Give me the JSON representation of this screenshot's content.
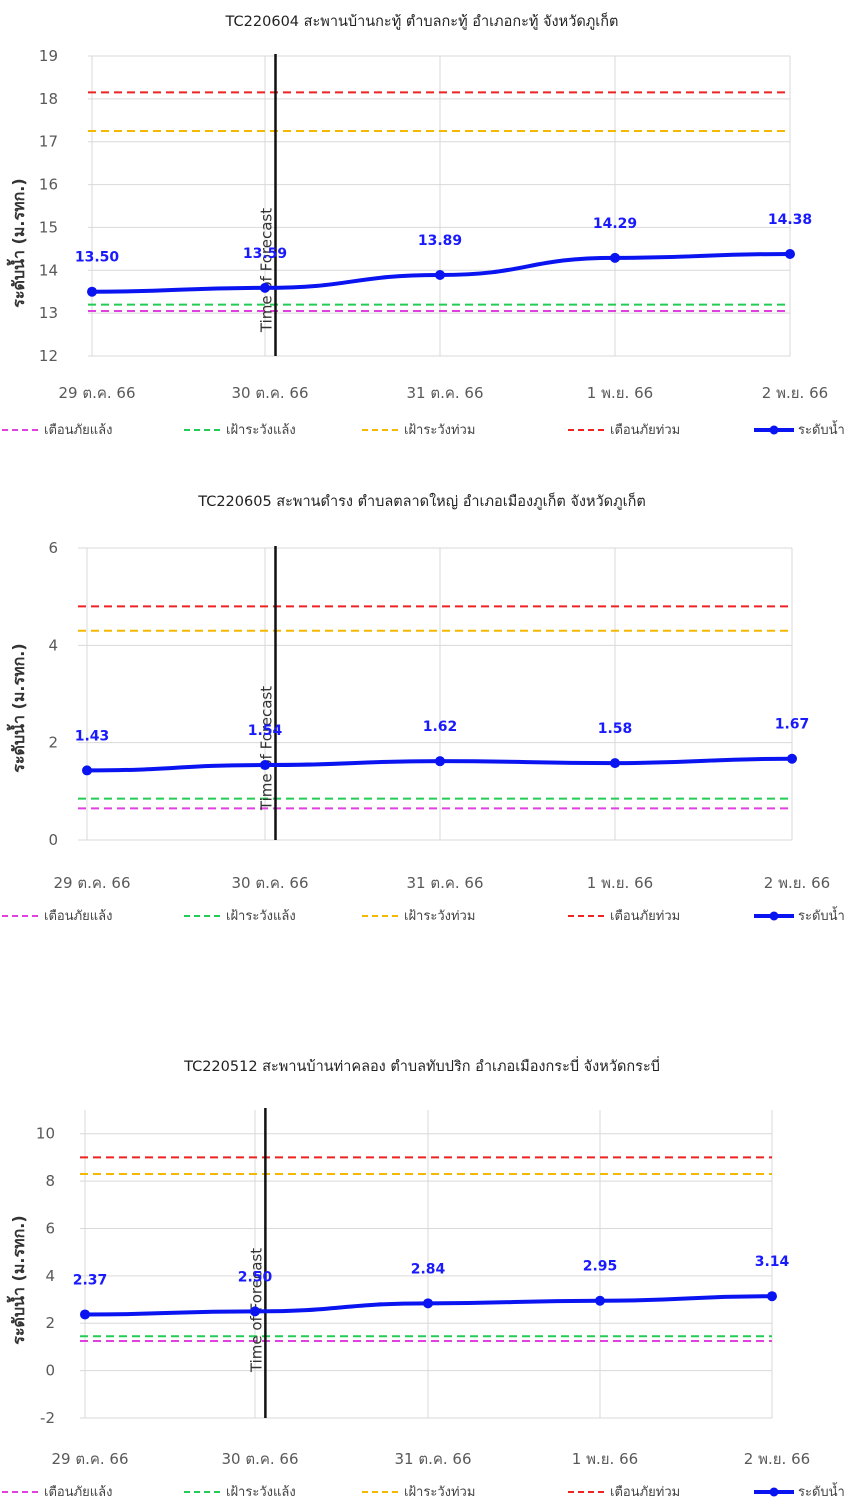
{
  "chart_data": [
    {
      "type": "line",
      "title": "TC220604 สะพานบ้านกะทู้ ตำบลกะทู้ อำเภอกะทู้  จังหวัดภูเก็ต",
      "ylabel": "ระดับน้ำ (ม.รทก.)",
      "categories": [
        "29 ต.ค. 66",
        "30 ต.ค. 66",
        "31 ต.ค. 66",
        "1 พ.ย. 66",
        "2 พ.ย. 66"
      ],
      "ylim": [
        12,
        19
      ],
      "yticks": [
        12,
        13,
        14,
        15,
        16,
        17,
        18,
        19
      ],
      "time_of_forecast_label": "Time of Forecast",
      "time_of_forecast_x": 1.06,
      "thresholds": [
        {
          "name": "เตือนภัยแล้ง",
          "value": 13.05,
          "color": "#e040e0"
        },
        {
          "name": "เฝ้าระวังแล้ง",
          "value": 13.2,
          "color": "#22cc55"
        },
        {
          "name": "เฝ้าระวังท่วม",
          "value": 17.25,
          "color": "#f5b800"
        },
        {
          "name": "เตือนภัยท่วม",
          "value": 18.15,
          "color": "#ee2222"
        }
      ],
      "series": [
        {
          "name": "ระดับน้ำ",
          "color": "#0a14f0",
          "values": [
            13.5,
            13.59,
            13.89,
            14.29,
            14.38
          ],
          "labels": [
            "13.50",
            "13.59",
            "13.89",
            "14.29",
            "14.38"
          ]
        }
      ],
      "grid": true,
      "legend_position": "bottom"
    },
    {
      "type": "line",
      "title": "TC220605 สะพานดำรง ตำบลตลาดใหญ่ อำเภอเมืองภูเก็ต จังหวัดภูเก็ต",
      "ylabel": "ระดับน้ำ (ม.รทก.)",
      "categories": [
        "29 ต.ค. 66",
        "30 ต.ค. 66",
        "31 ต.ค. 66",
        "1 พ.ย. 66",
        "2 พ.ย. 66"
      ],
      "ylim": [
        0,
        6
      ],
      "yticks": [
        0,
        2,
        4,
        6
      ],
      "time_of_forecast_label": "Time of Forecast",
      "time_of_forecast_x": 1.06,
      "thresholds": [
        {
          "name": "เตือนภัยแล้ง",
          "value": 0.65,
          "color": "#e040e0"
        },
        {
          "name": "เฝ้าระวังแล้ง",
          "value": 0.85,
          "color": "#22cc55"
        },
        {
          "name": "เฝ้าระวังท่วม",
          "value": 4.3,
          "color": "#f5b800"
        },
        {
          "name": "เตือนภัยท่วม",
          "value": 4.8,
          "color": "#ee2222"
        }
      ],
      "series": [
        {
          "name": "ระดับน้ำ",
          "color": "#0a14f0",
          "values": [
            1.43,
            1.54,
            1.62,
            1.58,
            1.67
          ],
          "labels": [
            "1.43",
            "1.54",
            "1.62",
            "1.58",
            "1.67"
          ]
        }
      ],
      "grid": true,
      "legend_position": "bottom"
    },
    {
      "type": "line",
      "title": "TC220512 สะพานบ้านท่าคลอง ตำบลทับปริก อำเภอเมืองกระบี่  จังหวัดกระบี่",
      "ylabel": "ระดับน้ำ (ม.รทก.)",
      "categories": [
        "29 ต.ค. 66",
        "30 ต.ค. 66",
        "31 ต.ค. 66",
        "1 พ.ย. 66",
        "2 พ.ย. 66"
      ],
      "ylim": [
        -2,
        11
      ],
      "yticks": [
        -2,
        0,
        2,
        4,
        6,
        8,
        10
      ],
      "time_of_forecast_label": "Time of Forecast",
      "time_of_forecast_x": 1.06,
      "thresholds": [
        {
          "name": "เตือนภัยแล้ง",
          "value": 1.25,
          "color": "#e040e0"
        },
        {
          "name": "เฝ้าระวังแล้ง",
          "value": 1.45,
          "color": "#22cc55"
        },
        {
          "name": "เฝ้าระวังท่วม",
          "value": 8.3,
          "color": "#f5b800"
        },
        {
          "name": "เตือนภัยท่วม",
          "value": 9.0,
          "color": "#ee2222"
        }
      ],
      "series": [
        {
          "name": "ระดับน้ำ",
          "color": "#0a14f0",
          "values": [
            2.37,
            2.5,
            2.84,
            2.95,
            3.14
          ],
          "labels": [
            "2.37",
            "2.50",
            "2.84",
            "2.95",
            "3.14"
          ]
        }
      ],
      "grid": true,
      "legend_position": "bottom"
    }
  ]
}
